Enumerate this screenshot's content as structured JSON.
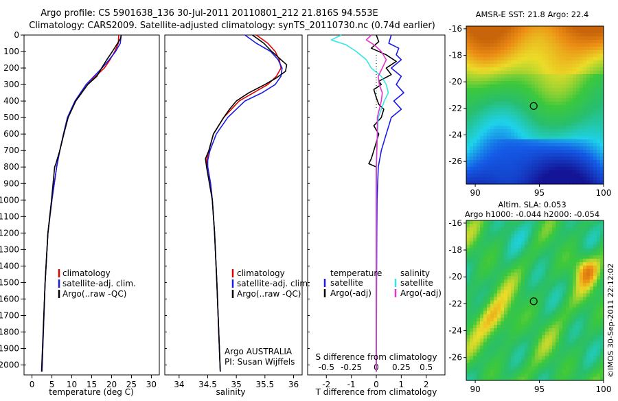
{
  "header": {
    "title_line1": "Argo profile: CS 5901638_136 30-Jul-2011 20110801_212 21.816S 94.553E",
    "title_line2": "Climatology: CARS2009. Satellite-adjusted climatology: synTS_20110730.nc (0.74d earlier)"
  },
  "side_stamp": "©IMOS 30-Sep-2011 22:12:02",
  "depth_axis": {
    "ticks": [
      0,
      100,
      200,
      300,
      400,
      500,
      600,
      700,
      800,
      900,
      1000,
      1100,
      1200,
      1300,
      1400,
      1500,
      1600,
      1700,
      1800,
      1900,
      2000
    ],
    "range": [
      0,
      2060
    ]
  },
  "colors": {
    "climatology": "#e00000",
    "satellite": "#1a1ae6",
    "argo": "#000000",
    "sal_satellite": "#33e6e6",
    "sal_argo": "#e633cc"
  },
  "chart_data": [
    {
      "type": "line",
      "id": "temperature",
      "xlabel": "temperature (deg C)",
      "xticks": [
        0,
        5,
        10,
        15,
        20,
        25,
        30
      ],
      "xlim": [
        -2,
        32
      ],
      "ylim": [
        0,
        2060
      ],
      "legend": [
        "climatology",
        "satellite-adj. clim.",
        "Argo(..raw -QC)"
      ],
      "series": [
        {
          "name": "climatology",
          "color": "#e00000",
          "depth": [
            0,
            50,
            100,
            150,
            200,
            250,
            300,
            400,
            500,
            600,
            700,
            800,
            1000,
            1200,
            1500,
            2040
          ],
          "values": [
            21.8,
            21.7,
            20.8,
            19.6,
            18.2,
            16.0,
            14.0,
            11.0,
            9.0,
            8.0,
            7.0,
            6.2,
            5.0,
            4.0,
            3.3,
            2.5
          ]
        },
        {
          "name": "satellite-adj. clim.",
          "color": "#1a1ae6",
          "depth": [
            0,
            50,
            100,
            150,
            200,
            250,
            300,
            400,
            500,
            600,
            700,
            800,
            1000,
            1200,
            1500,
            2040
          ],
          "values": [
            22.4,
            22.2,
            21.0,
            19.4,
            17.6,
            15.6,
            13.6,
            10.8,
            8.9,
            7.9,
            7.0,
            6.2,
            5.0,
            4.0,
            3.3,
            2.5
          ]
        },
        {
          "name": "Argo(..raw -QC)",
          "color": "#000000",
          "depth": [
            0,
            20,
            50,
            100,
            150,
            200,
            250,
            300,
            400,
            500,
            600,
            700,
            780,
            800,
            900,
            1000,
            1200,
            1500,
            2040
          ],
          "values": [
            22.4,
            22.3,
            21.5,
            20.2,
            18.8,
            17.5,
            16.3,
            14.0,
            11.0,
            9.1,
            8.0,
            7.0,
            6.0,
            5.7,
            5.3,
            4.9,
            4.0,
            3.3,
            2.4
          ]
        }
      ]
    },
    {
      "type": "line",
      "id": "salinity",
      "xlabel": "salinity",
      "xticks": [
        34,
        34.5,
        35,
        35.5,
        36
      ],
      "xlim": [
        33.75,
        36.15
      ],
      "ylim": [
        0,
        2060
      ],
      "legend": [
        "climatology",
        "satellite-adj. clim.",
        "Argo(..raw -QC)"
      ],
      "annotation": [
        "Argo AUSTRALIA",
        "PI: Susan Wijffels"
      ],
      "series": [
        {
          "name": "climatology",
          "color": "#e00000",
          "depth": [
            0,
            50,
            100,
            150,
            200,
            250,
            300,
            350,
            400,
            500,
            600,
            700,
            760,
            800,
            900,
            1000,
            1200,
            1500,
            2040
          ],
          "values": [
            35.35,
            35.55,
            35.68,
            35.75,
            35.78,
            35.7,
            35.55,
            35.3,
            35.05,
            34.78,
            34.6,
            34.52,
            34.48,
            34.5,
            34.55,
            34.58,
            34.62,
            34.66,
            34.72
          ]
        },
        {
          "name": "satellite-adj. clim.",
          "color": "#1a1ae6",
          "depth": [
            0,
            50,
            100,
            150,
            200,
            250,
            300,
            350,
            400,
            500,
            600,
            700,
            760,
            800,
            900,
            1000,
            1200,
            1500,
            2040
          ],
          "values": [
            35.15,
            35.35,
            35.6,
            35.73,
            35.8,
            35.78,
            35.68,
            35.45,
            35.15,
            34.85,
            34.65,
            34.54,
            34.5,
            34.5,
            34.55,
            34.58,
            34.62,
            34.66,
            34.72
          ]
        },
        {
          "name": "Argo(..raw -QC)",
          "color": "#000000",
          "depth": [
            0,
            50,
            100,
            150,
            180,
            220,
            260,
            300,
            350,
            400,
            450,
            500,
            600,
            700,
            750,
            800,
            900,
            1000,
            1200,
            1500,
            2040
          ],
          "values": [
            35.28,
            35.48,
            35.62,
            35.78,
            35.88,
            35.86,
            35.7,
            35.5,
            35.22,
            35.0,
            34.88,
            34.78,
            34.6,
            34.52,
            34.46,
            34.48,
            34.53,
            34.58,
            34.62,
            34.66,
            34.72
          ]
        }
      ]
    },
    {
      "type": "line",
      "id": "difference",
      "xlabel": "T difference from climatology",
      "xlabel_top": "S difference from climatology",
      "xticks": [
        -2,
        -1,
        0,
        1,
        2
      ],
      "xticks_top": [
        "-0.5",
        "-0.25",
        "0",
        "0.25",
        "0.5"
      ],
      "xlim": [
        -2.75,
        2.75
      ],
      "ylim": [
        0,
        2060
      ],
      "legend_temperature_title": "temperature",
      "legend_salinity_title": "salinity",
      "legend_temperature": [
        "satellite",
        "Argo(-adj)"
      ],
      "legend_salinity": [
        "satellite",
        "Argo(-adj)"
      ],
      "series": [
        {
          "name": "temperature satellite",
          "color": "#1a1ae6",
          "depth": [
            0,
            50,
            80,
            120,
            150,
            200,
            250,
            300,
            350,
            400,
            450,
            500,
            550,
            600,
            650,
            700,
            800,
            1000,
            1200,
            1500,
            2040
          ],
          "values": [
            0.6,
            0.5,
            0.9,
            0.8,
            1.0,
            0.6,
            1.0,
            0.8,
            1.1,
            0.7,
            1.0,
            0.6,
            0.5,
            0.4,
            0.3,
            0.2,
            0.08,
            0.03,
            0.02,
            0.01,
            0.0
          ]
        },
        {
          "name": "temperature Argo(-adj)",
          "color": "#000000",
          "depth": [
            0,
            40,
            80,
            120,
            160,
            200,
            240,
            280,
            300,
            330,
            380,
            420,
            450,
            500,
            550,
            600,
            650,
            700,
            750,
            780,
            800,
            850,
            900,
            1000,
            1200,
            1500,
            2040
          ],
          "values": [
            0.0,
            0.1,
            -0.2,
            0.4,
            0.8,
            0.4,
            0.6,
            0.1,
            0.2,
            -0.1,
            0.0,
            0.1,
            0.3,
            0.2,
            -0.1,
            0.1,
            0.0,
            -0.1,
            -0.2,
            -0.3,
            0.0,
            0.0,
            0.0,
            0.0,
            0.0,
            0.0,
            0.0
          ]
        },
        {
          "name": "salinity satellite",
          "color": "#33e6e6",
          "depth": [
            0,
            30,
            60,
            100,
            150,
            200,
            250,
            300,
            350,
            400,
            450,
            500,
            600,
            800,
            1000,
            1500,
            2040
          ],
          "values": [
            -0.35,
            -0.45,
            -0.3,
            -0.2,
            -0.1,
            -0.05,
            0.05,
            0.1,
            0.12,
            0.08,
            0.05,
            0.02,
            0.01,
            0.0,
            0.0,
            0.0,
            0.0
          ]
        },
        {
          "name": "salinity Argo(-adj)",
          "color": "#e633cc",
          "depth": [
            0,
            30,
            60,
            100,
            150,
            200,
            250,
            300,
            350,
            400,
            450,
            500,
            600,
            800,
            1000,
            1500,
            2040
          ],
          "values": [
            -0.05,
            -0.1,
            -0.02,
            0.05,
            0.1,
            0.06,
            0.02,
            0.03,
            0.06,
            0.05,
            0.03,
            0.01,
            0.01,
            0.0,
            0.0,
            0.0,
            0.0
          ]
        }
      ]
    },
    {
      "type": "heatmap",
      "id": "sst_map",
      "title": "AMSR-E SST: 21.8 Argo: 22.4",
      "xticks": [
        90,
        95,
        100
      ],
      "yticks": [
        -16,
        -18,
        -20,
        -22,
        -24,
        -26
      ],
      "xlim": [
        89.3,
        100
      ],
      "ylim": [
        -27.7,
        -15.8
      ],
      "marker": {
        "lon": 94.553,
        "lat": -21.816
      }
    },
    {
      "type": "heatmap",
      "id": "sla_map",
      "title_line1": "Altim. SLA: 0.053",
      "title_line2": "Argo h1000: -0.044 h2000: -0.054",
      "xticks": [
        90,
        95,
        100
      ],
      "yticks": [
        -16,
        -18,
        -20,
        -22,
        -24,
        -26
      ],
      "xlim": [
        89.3,
        100
      ],
      "ylim": [
        -27.7,
        -15.8
      ],
      "marker": {
        "lon": 94.553,
        "lat": -21.816
      }
    }
  ]
}
